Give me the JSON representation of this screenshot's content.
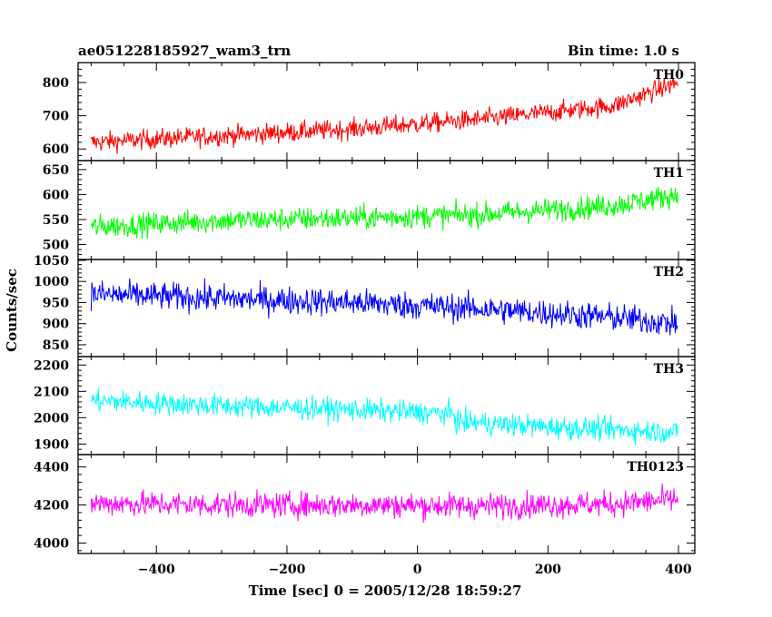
{
  "chart_data": {
    "type": "line",
    "title_left": "ae051228185927_wam3_trn",
    "title_right": "Bin time: 1.0 s",
    "xlabel": "Time [sec] 0 = 2005/12/28 18:59:27",
    "ylabel": "Counts/sec",
    "xlim": [
      -520,
      425
    ],
    "x_start": -500,
    "x_end": 399,
    "x_step": 1,
    "x_ticks": [
      -400,
      -200,
      0,
      200,
      400
    ],
    "x_ticks_labels": [
      "−400",
      "−200",
      "0",
      "200",
      "400"
    ],
    "panels": [
      {
        "name": "TH0",
        "color": "#ff0000",
        "ylim": [
          565,
          860
        ],
        "yticks": [
          600,
          700,
          800
        ],
        "trend_x": [
          -500,
          -300,
          -100,
          100,
          300,
          399
        ],
        "trend_y": [
          620,
          640,
          660,
          690,
          730,
          800
        ],
        "noise_amp": 38
      },
      {
        "name": "TH1",
        "color": "#00ff00",
        "ylim": [
          470,
          668
        ],
        "yticks": [
          500,
          550,
          600,
          650
        ],
        "trend_x": [
          -500,
          -300,
          -100,
          100,
          300,
          399
        ],
        "trend_y": [
          535,
          548,
          553,
          560,
          578,
          600
        ],
        "noise_amp": 30
      },
      {
        "name": "TH2",
        "color": "#0000ff",
        "ylim": [
          822,
          1052
        ],
        "yticks": [
          850,
          900,
          950,
          1000,
          1050
        ],
        "trend_x": [
          -500,
          -300,
          -100,
          100,
          300,
          399
        ],
        "trend_y": [
          970,
          960,
          950,
          935,
          915,
          900
        ],
        "noise_amp": 42
      },
      {
        "name": "TH3",
        "color": "#00ffff",
        "ylim": [
          1860,
          2232
        ],
        "yticks": [
          1900,
          2000,
          2100,
          2200
        ],
        "trend_x": [
          -500,
          -300,
          -100,
          55,
          60,
          200,
          399
        ],
        "trend_y": [
          2065,
          2045,
          2030,
          2015,
          1985,
          1965,
          1945
        ],
        "noise_amp": 55
      },
      {
        "name": "TH0123",
        "color": "#ff00ff",
        "ylim": [
          3945,
          4465
        ],
        "yticks": [
          4000,
          4200,
          4400
        ],
        "trend_x": [
          -500,
          -300,
          -100,
          100,
          300,
          399
        ],
        "trend_y": [
          4210,
          4200,
          4200,
          4195,
          4205,
          4230
        ],
        "noise_amp": 85
      }
    ]
  }
}
